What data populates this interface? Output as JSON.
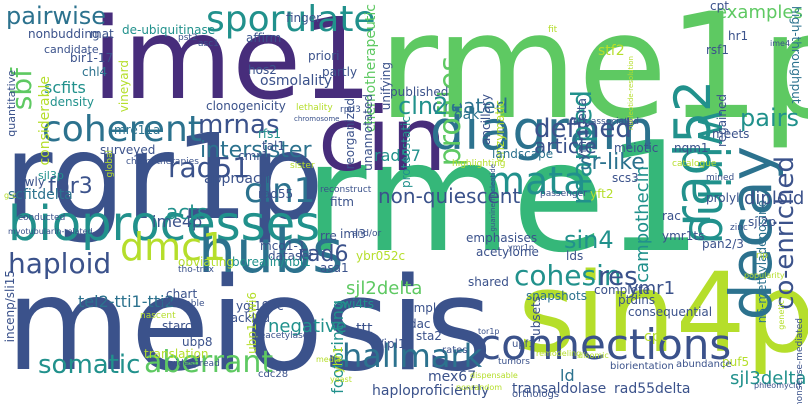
{
  "palette": {
    "light_green": "#b5de2b",
    "green": "#5ec962",
    "teal_green": "#35b779",
    "teal": "#21918c",
    "blue_teal": "#2c728e",
    "blue": "#3b528b",
    "indigo": "#472d7b",
    "purple": "#440154",
    "yellow": "#d9e51f"
  },
  "words": [
    {
      "text": "rme1p",
      "color": "#5ec962"
    },
    {
      "text": "meiosis",
      "color": "#3b528b"
    },
    {
      "text": "rme1",
      "color": "#35b779"
    },
    {
      "text": "rgr1p",
      "color": "#3b528b"
    },
    {
      "text": "ime1",
      "color": "#472d7b"
    },
    {
      "text": "sin4p",
      "color": "#b5de2b"
    },
    {
      "text": "cin",
      "color": "#472d7b"
    },
    {
      "text": "diagram",
      "color": "#2c728e"
    },
    {
      "text": "bioprocesses",
      "color": "#21918c"
    },
    {
      "text": "hubs",
      "color": "#2c728e"
    },
    {
      "text": "connections",
      "color": "#3b528b"
    },
    {
      "text": "sporulate",
      "color": "#21918c"
    },
    {
      "text": "coherent",
      "color": "#2c728e"
    },
    {
      "text": "rad52",
      "color": "#21918c"
    },
    {
      "text": "decay",
      "color": "#2c728e"
    },
    {
      "text": "wiring",
      "color": "#21918c"
    },
    {
      "text": "mata",
      "color": "#21918c"
    },
    {
      "text": "dmc1",
      "color": "#b5de2b"
    },
    {
      "text": "cln1",
      "color": "#2c728e"
    },
    {
      "text": "cohesin",
      "color": "#21918c"
    },
    {
      "text": "haploid",
      "color": "#3b528b"
    },
    {
      "text": "aberrant",
      "color": "#5ec962"
    },
    {
      "text": "hallmark",
      "color": "#2c728e"
    },
    {
      "text": "somatic",
      "color": "#21918c"
    },
    {
      "text": "created",
      "color": "#2c728e"
    },
    {
      "text": "defined",
      "color": "#3b528b"
    },
    {
      "text": "examples",
      "color": "#5ec962"
    },
    {
      "text": "pairwise",
      "color": "#2c728e"
    },
    {
      "text": "sbf",
      "color": "#5ec962"
    },
    {
      "text": "mrnas",
      "color": "#3b528b"
    },
    {
      "text": "profiles",
      "color": "#5ec962"
    },
    {
      "text": "mapped",
      "color": "#21918c"
    },
    {
      "text": "pairs",
      "color": "#21918c"
    },
    {
      "text": "co-enriched",
      "color": "#3b528b"
    },
    {
      "text": "cln2",
      "color": "#21918c"
    },
    {
      "text": "rad51",
      "color": "#3b528b"
    },
    {
      "text": "intersister",
      "color": "#2c728e"
    },
    {
      "text": "rad6",
      "color": "#3b528b"
    },
    {
      "text": "sin4",
      "color": "#21918c"
    },
    {
      "text": "ime4p",
      "color": "#3b528b"
    },
    {
      "text": "non-quiescent",
      "color": "#3b528b"
    },
    {
      "text": "fpr3",
      "color": "#3b528b"
    },
    {
      "text": "sr-like",
      "color": "#2c728e"
    },
    {
      "text": "res",
      "color": "#3b528b"
    },
    {
      "text": "acts",
      "color": "#21918c"
    },
    {
      "text": "sjl2delta",
      "color": "#5ec962"
    },
    {
      "text": "tel2-tti1-tti2",
      "color": "#2c728e"
    },
    {
      "text": "negative",
      "color": "#21918c"
    },
    {
      "text": "rad57",
      "color": "#21918c"
    },
    {
      "text": "campothecin",
      "color": "#21918c"
    },
    {
      "text": "ymr1",
      "color": "#3b528b"
    },
    {
      "text": "article",
      "color": "#3b528b"
    },
    {
      "text": "diploid",
      "color": "#3b528b"
    },
    {
      "text": "sjl3delta",
      "color": "#21918c"
    },
    {
      "text": "rad55delta",
      "color": "#3b528b"
    },
    {
      "text": "ld",
      "color": "#2c728e"
    },
    {
      "text": "mex67",
      "color": "#3b528b"
    },
    {
      "text": "haploproficiently",
      "color": "#3b528b"
    },
    {
      "text": "transaldolase",
      "color": "#3b528b"
    },
    {
      "text": "footprinting",
      "color": "#21918c"
    },
    {
      "text": "chemotherapeutic",
      "color": "#5ec962"
    },
    {
      "text": "high-throughput",
      "color": "#2c728e"
    },
    {
      "text": "n6-methyladenosine",
      "color": "#2c728e"
    },
    {
      "text": "incenp/sli15",
      "color": "#3b528b"
    },
    {
      "text": "surveyed",
      "color": "#3b528b"
    },
    {
      "text": "clonogenicity",
      "color": "#3b528b"
    },
    {
      "text": "candidate",
      "color": "#3b528b"
    },
    {
      "text": "scfits",
      "color": "#21918c"
    },
    {
      "text": "density",
      "color": "#21918c"
    },
    {
      "text": "considerable",
      "color": "#b5de2b"
    },
    {
      "text": "quantitative",
      "color": "#3b528b"
    },
    {
      "text": "lowly",
      "color": "#3b528b"
    },
    {
      "text": "sjl3p",
      "color": "#21918c"
    },
    {
      "text": "scfitdelta",
      "color": "#2c728e"
    },
    {
      "text": "myotubularin-related",
      "color": "#3b528b"
    },
    {
      "text": "nonbudding",
      "color": "#3b528b"
    },
    {
      "text": "bir1-17",
      "color": "#3b528b"
    },
    {
      "text": "chl4",
      "color": "#2c728e"
    },
    {
      "text": "vineyard",
      "color": "#b5de2b"
    },
    {
      "text": "mat",
      "color": "#3b528b"
    },
    {
      "text": "de-ubiquitinase",
      "color": "#21918c"
    },
    {
      "text": "affirm",
      "color": "#3b528b"
    },
    {
      "text": "finger",
      "color": "#3b528b"
    },
    {
      "text": "hos2",
      "color": "#3b528b"
    },
    {
      "text": "priori",
      "color": "#3b528b"
    },
    {
      "text": "partly",
      "color": "#3b528b"
    },
    {
      "text": "osmolality",
      "color": "#3b528b"
    },
    {
      "text": "unannotated",
      "color": "#3b528b"
    },
    {
      "text": "unifying",
      "color": "#3b528b"
    },
    {
      "text": "published",
      "color": "#3b528b"
    },
    {
      "text": "proteostatic",
      "color": "#21918c"
    },
    {
      "text": "ancillary",
      "color": "#3b528b"
    },
    {
      "text": "enzymatic",
      "color": "#b5de2b"
    },
    {
      "text": "reorganized",
      "color": "#3b528b"
    },
    {
      "text": "landscape",
      "color": "#2c728e"
    },
    {
      "text": "meiotic",
      "color": "#3b528b"
    },
    {
      "text": "ymr1delta",
      "color": "#3b528b"
    },
    {
      "text": "stf2",
      "color": "#b5de2b"
    },
    {
      "text": "cpt",
      "color": "#3b528b"
    },
    {
      "text": "hr1",
      "color": "#3b528b"
    },
    {
      "text": "rsf1",
      "color": "#3b528b"
    },
    {
      "text": "regained",
      "color": "#3b528b"
    },
    {
      "text": "mre11a",
      "color": "#2c728e"
    },
    {
      "text": "rfs1",
      "color": "#21918c"
    },
    {
      "text": "tal1",
      "color": "#3b528b"
    },
    {
      "text": "cmr1",
      "color": "#3b528b"
    },
    {
      "text": "approach",
      "color": "#3b528b"
    },
    {
      "text": "rad55",
      "color": "#3b528b"
    },
    {
      "text": "fitm",
      "color": "#3b528b"
    },
    {
      "text": "oak",
      "color": "#2c728e"
    },
    {
      "text": "nqm1",
      "color": "#3b528b"
    },
    {
      "text": "meets",
      "color": "#3b528b"
    },
    {
      "text": "yft2",
      "color": "#b5de2b"
    },
    {
      "text": "scs3",
      "color": "#3b528b"
    },
    {
      "text": "prolyl",
      "color": "#3b528b"
    },
    {
      "text": "rac",
      "color": "#3b528b"
    },
    {
      "text": "ymr1ts",
      "color": "#3b528b"
    },
    {
      "text": "sjl2p",
      "color": "#3b528b"
    },
    {
      "text": "pan2/3",
      "color": "#3b528b"
    },
    {
      "text": "mcd1-1",
      "color": "#3b528b"
    },
    {
      "text": "dataset",
      "color": "#3b528b"
    },
    {
      "text": "borealin/nbl1",
      "color": "#21918c"
    },
    {
      "text": "obviating",
      "color": "#b5de2b"
    },
    {
      "text": "iml3",
      "color": "#3b528b"
    },
    {
      "text": "rre",
      "color": "#3b528b"
    },
    {
      "text": "ybr052c",
      "color": "#b5de2b"
    },
    {
      "text": "emphasises",
      "color": "#3b528b"
    },
    {
      "text": "acetylome",
      "color": "#3b528b"
    },
    {
      "text": "shared",
      "color": "#3b528b"
    },
    {
      "text": "snapshots",
      "color": "#2c728e"
    },
    {
      "text": "complete",
      "color": "#3b528b"
    },
    {
      "text": "ptdins",
      "color": "#3b528b"
    },
    {
      "text": "consequential",
      "color": "#3b528b"
    },
    {
      "text": "lds",
      "color": "#3b528b"
    },
    {
      "text": "chart",
      "color": "#3b528b"
    },
    {
      "text": "ygl193c",
      "color": "#3b528b"
    },
    {
      "text": "swi4ts",
      "color": "#21918c"
    },
    {
      "text": "asa1",
      "color": "#3b528b"
    },
    {
      "text": "starch",
      "color": "#3b528b"
    },
    {
      "text": "ubp8",
      "color": "#3b528b"
    },
    {
      "text": "translation",
      "color": "#b5de2b"
    },
    {
      "text": "ubp1-swi6",
      "color": "#b5de2b"
    },
    {
      "text": "ttt",
      "color": "#3b528b"
    },
    {
      "text": "kdac",
      "color": "#3b528b"
    },
    {
      "text": "simpler",
      "color": "#3b528b"
    },
    {
      "text": "sta2",
      "color": "#3b528b"
    },
    {
      "text": "b/ipl1",
      "color": "#3b528b"
    },
    {
      "text": "tackled",
      "color": "#3b528b"
    },
    {
      "text": "subsets",
      "color": "#3b528b"
    },
    {
      "text": "cpt",
      "color": "#b5de2b"
    },
    {
      "text": "puf5",
      "color": "#b5de2b"
    },
    {
      "text": "yhr1",
      "color": "#b5de2b"
    },
    {
      "text": "rates",
      "color": "#3b528b"
    },
    {
      "text": "upf1",
      "color": "#3b528b"
    },
    {
      "text": "cdc28",
      "color": "#3b528b"
    },
    {
      "text": "biorientation",
      "color": "#3b528b"
    },
    {
      "text": "abundance",
      "color": "#3b528b"
    },
    {
      "text": "orthologs",
      "color": "#3b528b"
    },
    {
      "text": "nonsense-mediated",
      "color": "#3b528b"
    },
    {
      "text": "tumors",
      "color": "#3b528b"
    },
    {
      "text": "deacetylases",
      "color": "#3b528b"
    },
    {
      "text": "tho-trex",
      "color": "#3b528b"
    },
    {
      "text": "chemotherapies",
      "color": "#3b528b"
    },
    {
      "text": "global",
      "color": "#b5de2b"
    },
    {
      "text": "passenger",
      "color": "#3b528b"
    },
    {
      "text": "reconstruct",
      "color": "#3b528b"
    },
    {
      "text": "fork-associated",
      "color": "#3b528b"
    },
    {
      "text": "lethality",
      "color": "#b5de2b"
    },
    {
      "text": "nucleotide-resolution",
      "color": "#b5de2b"
    },
    {
      "text": "rpd3",
      "color": "#3b528b"
    },
    {
      "text": "fit",
      "color": "#b5de2b"
    },
    {
      "text": "asc1",
      "color": "#3b528b"
    },
    {
      "text": "pst2",
      "color": "#3b528b"
    },
    {
      "text": "mined",
      "color": "#3b528b"
    },
    {
      "text": "catalogue",
      "color": "#b5de2b"
    },
    {
      "text": "zinc",
      "color": "#3b528b"
    },
    {
      "text": "rip",
      "color": "#b5de2b"
    },
    {
      "text": "sister",
      "color": "#b5de2b"
    },
    {
      "text": "highlighting",
      "color": "#b5de2b"
    },
    {
      "text": "and/or",
      "color": "#3b528b"
    },
    {
      "text": "invaluable",
      "color": "#3b528b"
    },
    {
      "text": "widespread",
      "color": "#3b528b"
    },
    {
      "text": "nascent",
      "color": "#b5de2b"
    },
    {
      "text": "conducted",
      "color": "#3b528b"
    },
    {
      "text": "ime4",
      "color": "#3b528b"
    },
    {
      "text": "media",
      "color": "#b5de2b"
    },
    {
      "text": "yeast",
      "color": "#b5de2b"
    },
    {
      "text": "phleomycin",
      "color": "#3b528b"
    },
    {
      "text": "tor1p",
      "color": "#3b528b"
    },
    {
      "text": "chromosome",
      "color": "#3b528b"
    },
    {
      "text": "dispensable",
      "color": "#b5de2b"
    },
    {
      "text": "disomic",
      "color": "#b5de2b"
    },
    {
      "text": "popularity",
      "color": "#b5de2b"
    },
    {
      "text": "genetic",
      "color": "#b5de2b"
    },
    {
      "text": "g-c",
      "color": "#b5de2b"
    },
    {
      "text": "guanine-nucleotide",
      "color": "#3b528b"
    },
    {
      "text": "ymr1p",
      "color": "#3b528b"
    },
    {
      "text": "nonrandom",
      "color": "#b5de2b"
    },
    {
      "text": "remodeling",
      "color": "#b5de2b"
    }
  ]
}
